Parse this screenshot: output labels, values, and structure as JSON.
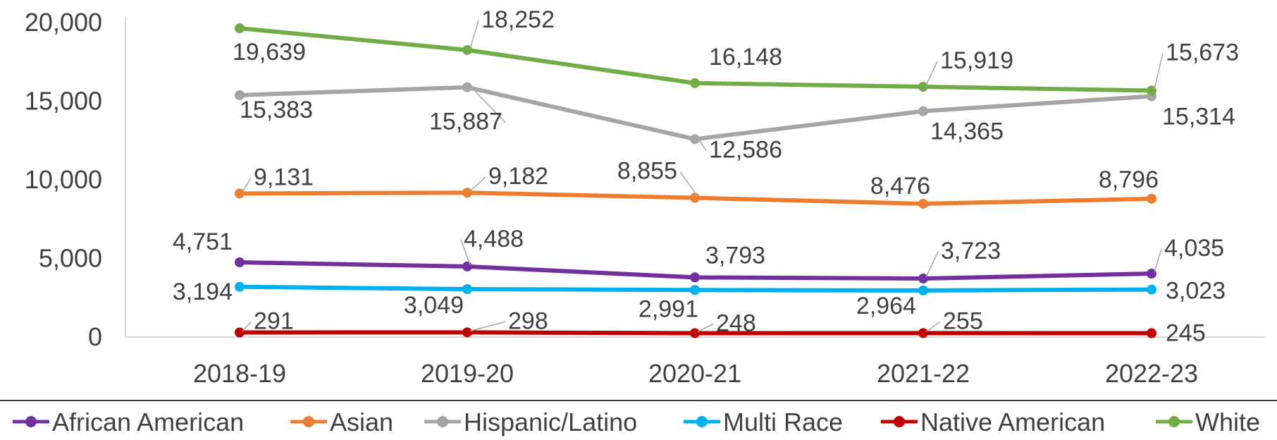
{
  "chart_data": {
    "type": "line",
    "title": "",
    "xlabel": "",
    "ylabel": "",
    "categories": [
      "2018-19",
      "2019-20",
      "2020-21",
      "2021-22",
      "2022-23"
    ],
    "ylim": [
      0,
      20000
    ],
    "yticks": [
      0,
      5000,
      10000,
      15000,
      20000
    ],
    "ytick_labels": [
      "0",
      "5,000",
      "10,000",
      "15,000",
      "20,000"
    ],
    "grid": false,
    "legend_position": "bottom",
    "series": [
      {
        "name": "African American",
        "color": "#7030a0",
        "values": [
          4751,
          4488,
          3793,
          3723,
          4035
        ],
        "labels": [
          "4,751",
          "4,488",
          "3,793",
          "3,723",
          "4,035"
        ]
      },
      {
        "name": "Asian",
        "color": "#ed7d31",
        "values": [
          9131,
          9182,
          8855,
          8476,
          8796
        ],
        "labels": [
          "9,131",
          "9,182",
          "8,855",
          "8,476",
          "8,796"
        ]
      },
      {
        "name": "Hispanic/Latino",
        "color": "#a5a5a5",
        "values": [
          15383,
          15887,
          12586,
          14365,
          15314
        ],
        "labels": [
          "15,383",
          "15,887",
          "12,586",
          "14,365",
          "15,314"
        ]
      },
      {
        "name": "Multi Race",
        "color": "#00b0f0",
        "values": [
          3194,
          3049,
          2991,
          2964,
          3023
        ],
        "labels": [
          "3,194",
          "3,049",
          "2,991",
          "2,964",
          "3,023"
        ]
      },
      {
        "name": "Native American",
        "color": "#c00000",
        "values": [
          291,
          298,
          248,
          255,
          245
        ],
        "labels": [
          "291",
          "298",
          "248",
          "255",
          "245"
        ]
      },
      {
        "name": "White",
        "color": "#70ad47",
        "values": [
          19639,
          18252,
          16148,
          15919,
          15673
        ],
        "labels": [
          "19,639",
          "18,252",
          "16,148",
          "15,919",
          "15,673"
        ]
      }
    ]
  }
}
